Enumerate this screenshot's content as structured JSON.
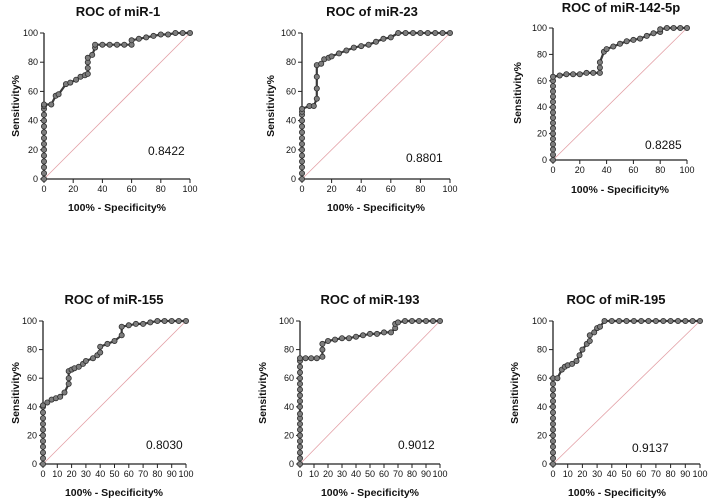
{
  "chart_data": [
    {
      "type": "line",
      "title": "ROC of miR-1",
      "xlabel": "100% - Specificity%",
      "ylabel": "Sensitivity%",
      "xlim": [
        0,
        100
      ],
      "ylim": [
        0,
        100
      ],
      "xticks": [
        "0",
        "20",
        "40",
        "60",
        "80",
        "100"
      ],
      "yticks": [
        "0",
        "20",
        "40",
        "60",
        "80",
        "100"
      ],
      "auc_label": "0.8422",
      "x": [
        0,
        0,
        0,
        0,
        0,
        0,
        0,
        0,
        0,
        0,
        0,
        0,
        0,
        0,
        0,
        5,
        8,
        10,
        15,
        18,
        22,
        25,
        28,
        30,
        30,
        30,
        30,
        33,
        35,
        35,
        40,
        45,
        50,
        55,
        60,
        60,
        65,
        70,
        75,
        80,
        85,
        90,
        95,
        100
      ],
      "y": [
        0,
        4,
        8,
        12,
        16,
        20,
        24,
        28,
        32,
        36,
        40,
        44,
        48,
        50,
        51,
        51,
        57,
        58,
        65,
        66,
        68,
        70,
        71,
        72,
        76,
        80,
        83,
        85,
        90,
        92,
        92,
        92,
        92,
        92,
        92,
        95,
        96,
        97,
        98,
        99,
        99,
        100,
        100,
        100
      ]
    },
    {
      "type": "line",
      "title": "ROC of miR-23",
      "xlabel": "100% - Specificity%",
      "ylabel": "Sensitivity%",
      "xlim": [
        0,
        100
      ],
      "ylim": [
        0,
        100
      ],
      "xticks": [
        "0",
        "20",
        "40",
        "60",
        "80",
        "100"
      ],
      "yticks": [
        "0",
        "20",
        "40",
        "60",
        "80",
        "100"
      ],
      "auc_label": "0.8801",
      "x": [
        0,
        0,
        0,
        0,
        0,
        0,
        0,
        0,
        0,
        0,
        0,
        0,
        0,
        0,
        5,
        8,
        10,
        10,
        10,
        10,
        13,
        15,
        18,
        20,
        25,
        30,
        35,
        40,
        45,
        50,
        55,
        60,
        65,
        70,
        75,
        80,
        85,
        90,
        95,
        100
      ],
      "y": [
        0,
        4,
        8,
        12,
        16,
        20,
        24,
        28,
        32,
        36,
        40,
        44,
        46,
        48,
        50,
        50,
        55,
        62,
        70,
        78,
        79,
        82,
        83,
        84,
        86,
        88,
        90,
        91,
        92,
        94,
        96,
        97,
        100,
        100,
        100,
        100,
        100,
        100,
        100,
        100
      ]
    },
    {
      "type": "line",
      "title": "ROC of miR-142-5p",
      "xlabel": "100% - Specificity%",
      "ylabel": "Sensitivity%",
      "xlim": [
        0,
        100
      ],
      "ylim": [
        0,
        100
      ],
      "xticks": [
        "0",
        "20",
        "40",
        "60",
        "80",
        "100"
      ],
      "yticks": [
        "0",
        "20",
        "40",
        "60",
        "80",
        "100"
      ],
      "auc_label": "0.8285",
      "x": [
        0,
        0,
        0,
        0,
        0,
        0,
        0,
        0,
        0,
        0,
        0,
        0,
        0,
        0,
        0,
        0,
        0,
        5,
        10,
        15,
        20,
        25,
        30,
        35,
        35,
        35,
        38,
        40,
        45,
        50,
        55,
        60,
        65,
        70,
        75,
        80,
        80,
        85,
        90,
        95,
        100
      ],
      "y": [
        0,
        4,
        8,
        12,
        16,
        20,
        24,
        28,
        32,
        36,
        40,
        44,
        48,
        52,
        56,
        60,
        63,
        64,
        65,
        65,
        65,
        66,
        66,
        66,
        70,
        74,
        82,
        84,
        86,
        88,
        90,
        91,
        92,
        94,
        96,
        97,
        99,
        100,
        100,
        100,
        100
      ]
    },
    {
      "type": "line",
      "title": "ROC of miR-155",
      "xlabel": "100% - Specificity%",
      "ylabel": "Sensitivity%",
      "xlim": [
        0,
        100
      ],
      "ylim": [
        0,
        100
      ],
      "xticks": [
        "0",
        "10",
        "20",
        "30",
        "40",
        "50",
        "60",
        "70",
        "80",
        "90",
        "100"
      ],
      "yticks": [
        "0",
        "20",
        "40",
        "60",
        "80",
        "100"
      ],
      "auc_label": "0.8030",
      "x": [
        0,
        0,
        0,
        0,
        0,
        0,
        0,
        0,
        0,
        0,
        0,
        0,
        3,
        6,
        9,
        12,
        15,
        18,
        18,
        18,
        20,
        22,
        25,
        28,
        30,
        35,
        38,
        40,
        40,
        45,
        50,
        55,
        55,
        60,
        65,
        70,
        75,
        80,
        85,
        90,
        95,
        100
      ],
      "y": [
        0,
        4,
        8,
        12,
        16,
        20,
        24,
        28,
        32,
        36,
        40,
        41,
        43,
        45,
        46,
        47,
        50,
        56,
        60,
        65,
        66,
        67,
        68,
        70,
        72,
        74,
        76,
        78,
        82,
        84,
        86,
        90,
        96,
        97,
        98,
        98,
        99,
        100,
        100,
        100,
        100,
        100
      ]
    },
    {
      "type": "line",
      "title": "ROC of miR-193",
      "xlabel": "100% - Specificity%",
      "ylabel": "Sensitivity%",
      "xlim": [
        0,
        100
      ],
      "ylim": [
        0,
        100
      ],
      "xticks": [
        "0",
        "10",
        "20",
        "30",
        "40",
        "50",
        "60",
        "70",
        "80",
        "90",
        "100"
      ],
      "yticks": [
        "0",
        "20",
        "40",
        "60",
        "80",
        "100"
      ],
      "auc_label": "0.9012",
      "x": [
        0,
        0,
        0,
        0,
        0,
        0,
        0,
        0,
        0,
        0,
        0,
        0,
        0,
        0,
        0,
        0,
        0,
        0,
        0,
        0,
        4,
        8,
        12,
        16,
        16,
        16,
        20,
        25,
        30,
        35,
        40,
        45,
        50,
        55,
        60,
        65,
        68,
        68,
        70,
        75,
        80,
        85,
        90,
        95,
        100
      ],
      "y": [
        0,
        4,
        8,
        12,
        16,
        20,
        24,
        28,
        32,
        35,
        40,
        44,
        48,
        52,
        56,
        60,
        64,
        68,
        72,
        74,
        74,
        74,
        74,
        75,
        80,
        84,
        86,
        87,
        88,
        88,
        89,
        90,
        91,
        91,
        92,
        92,
        95,
        98,
        99,
        100,
        100,
        100,
        100,
        100,
        100
      ]
    },
    {
      "type": "line",
      "title": "ROC of miR-195",
      "xlabel": "100% - Specificity%",
      "ylabel": "Sensitivity%",
      "xlim": [
        0,
        100
      ],
      "ylim": [
        0,
        100
      ],
      "xticks": [
        "0",
        "10",
        "20",
        "30",
        "40",
        "50",
        "60",
        "70",
        "80",
        "90",
        "100"
      ],
      "yticks": [
        "0",
        "20",
        "40",
        "60",
        "80",
        "100"
      ],
      "auc_label": "0.9137",
      "x": [
        0,
        0,
        0,
        0,
        0,
        0,
        0,
        0,
        0,
        0,
        0,
        0,
        0,
        0,
        0,
        0,
        3,
        6,
        8,
        10,
        13,
        16,
        18,
        20,
        23,
        25,
        25,
        28,
        30,
        32,
        35,
        40,
        45,
        50,
        55,
        60,
        65,
        70,
        75,
        80,
        85,
        90,
        95,
        100
      ],
      "y": [
        0,
        4,
        8,
        12,
        16,
        20,
        24,
        28,
        32,
        36,
        40,
        44,
        48,
        52,
        56,
        60,
        60,
        66,
        68,
        69,
        70,
        72,
        76,
        80,
        84,
        86,
        90,
        92,
        95,
        96,
        100,
        100,
        100,
        100,
        100,
        100,
        100,
        100,
        100,
        100,
        100,
        100,
        100,
        100
      ]
    }
  ]
}
